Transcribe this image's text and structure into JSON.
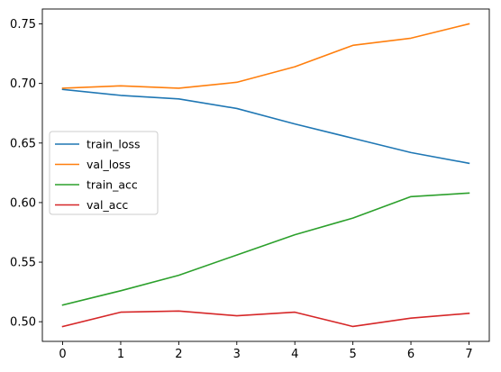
{
  "chart_data": {
    "type": "line",
    "x": [
      0,
      1,
      2,
      3,
      4,
      5,
      6,
      7
    ],
    "xticks": [
      "0",
      "1",
      "2",
      "3",
      "4",
      "5",
      "6",
      "7"
    ],
    "yticks": [
      "0.50",
      "0.55",
      "0.60",
      "0.65",
      "0.70",
      "0.75"
    ],
    "ytick_values": [
      0.5,
      0.55,
      0.6,
      0.65,
      0.7,
      0.75
    ],
    "xlim": [
      -0.35,
      7.35
    ],
    "ylim": [
      0.4835,
      0.7625
    ],
    "grid": false,
    "legend_placement": "center-left",
    "series": [
      {
        "name": "train_loss",
        "color": "#1f77b4",
        "values": [
          0.695,
          0.69,
          0.687,
          0.679,
          0.666,
          0.654,
          0.642,
          0.633
        ]
      },
      {
        "name": "val_loss",
        "color": "#ff7f0e",
        "values": [
          0.696,
          0.698,
          0.696,
          0.701,
          0.714,
          0.732,
          0.738,
          0.75
        ]
      },
      {
        "name": "train_acc",
        "color": "#2ca02c",
        "values": [
          0.514,
          0.526,
          0.539,
          0.556,
          0.573,
          0.587,
          0.605,
          0.608
        ]
      },
      {
        "name": "val_acc",
        "color": "#d62728",
        "values": [
          0.496,
          0.508,
          0.509,
          0.505,
          0.508,
          0.496,
          0.503,
          0.507
        ]
      }
    ]
  }
}
